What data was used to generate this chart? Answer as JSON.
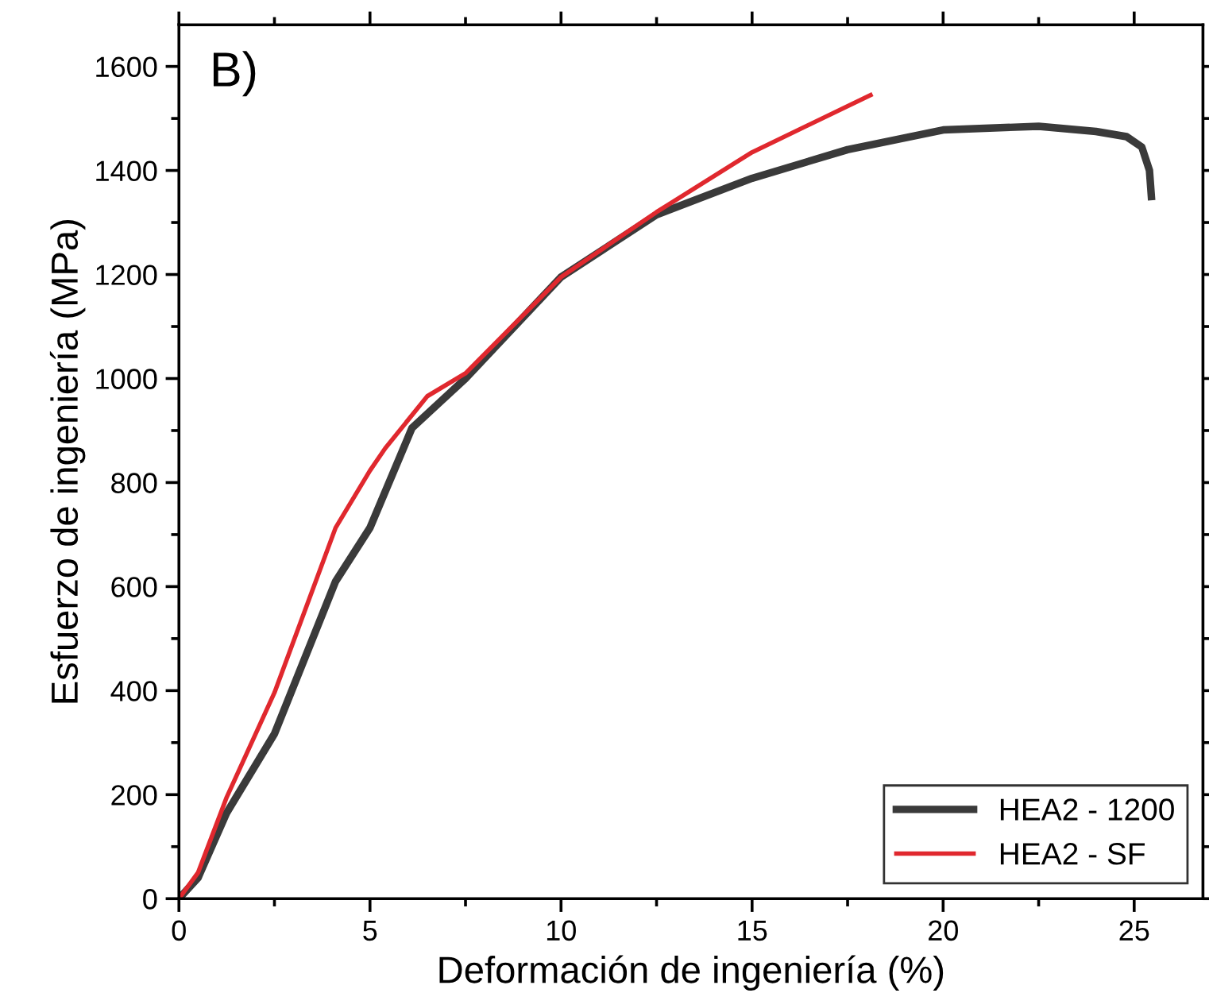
{
  "chart_data": {
    "type": "line",
    "xlabel": "Deformación de ingeniería (%)",
    "ylabel": "Esfuerzo de ingeniería (MPa)",
    "annotations": [
      "B)"
    ],
    "xlim": [
      0,
      26.8
    ],
    "ylim": [
      0,
      1680
    ],
    "xticks": [
      0,
      5,
      10,
      15,
      20,
      25
    ],
    "yticks": [
      0,
      200,
      400,
      600,
      800,
      1000,
      1200,
      1400,
      1600
    ],
    "legend": "bottom right",
    "grid": false,
    "marker": "none",
    "line_style": "solid",
    "series": [
      {
        "name": "HEA2 - 1200",
        "color": "#3a3a3a",
        "x": [
          0,
          0.5,
          1.25,
          2.5,
          4.1,
          5,
          6.1,
          7.5,
          10,
          12.5,
          15,
          17.5,
          20,
          22.5,
          24,
          24.8,
          25.2,
          25.4,
          25.45
        ],
        "values": [
          0,
          40,
          165,
          317,
          610,
          713,
          905,
          1000,
          1195,
          1315,
          1385,
          1440,
          1478,
          1485,
          1475,
          1465,
          1445,
          1400,
          1350
        ]
      },
      {
        "name": "HEA2 - SF",
        "color": "#e0282e",
        "x": [
          0,
          0.5,
          1.25,
          2.5,
          4.1,
          5,
          5.4,
          6.5,
          7.5,
          10,
          12.5,
          15,
          18.1
        ],
        "values": [
          0,
          50,
          195,
          396,
          713,
          823,
          866,
          966,
          1010,
          1195,
          1320,
          1435,
          1545
        ]
      }
    ]
  }
}
